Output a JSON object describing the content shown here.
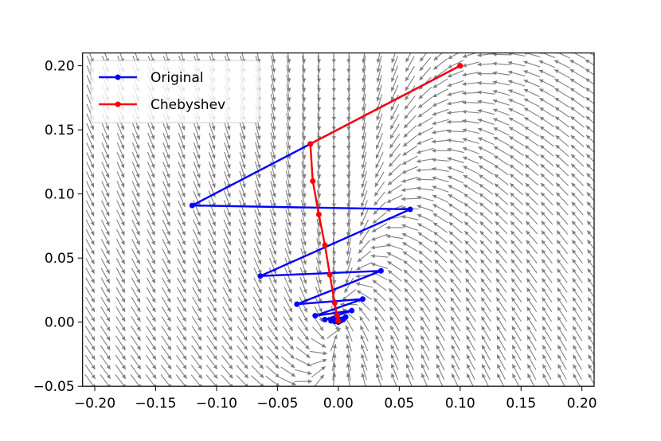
{
  "chart_data": {
    "type": "line",
    "title": "",
    "xlabel": "",
    "ylabel": "",
    "xlim": [
      -0.21,
      0.21
    ],
    "ylim": [
      -0.05,
      0.21
    ],
    "xticks": [
      "−0.20",
      "−0.15",
      "−0.10",
      "−0.05",
      "0.00",
      "0.05",
      "0.10",
      "0.15",
      "0.20"
    ],
    "xtick_values": [
      -0.2,
      -0.15,
      -0.1,
      -0.05,
      0.0,
      0.05,
      0.1,
      0.15,
      0.2
    ],
    "yticks": [
      "−0.05",
      "0.00",
      "0.05",
      "0.10",
      "0.15",
      "0.20"
    ],
    "ytick_values": [
      -0.05,
      0.0,
      0.05,
      0.1,
      0.15,
      0.2
    ],
    "grid": false,
    "legend_position": "upper-left",
    "background_field": {
      "type": "quiver",
      "color": "#808080"
    },
    "series": [
      {
        "name": "Original",
        "color": "#0000ff",
        "marker": "circle",
        "points": [
          [
            0.1,
            0.2
          ],
          [
            -0.023,
            0.139
          ],
          [
            -0.12,
            0.091
          ],
          [
            0.059,
            0.088
          ],
          [
            -0.064,
            0.036
          ],
          [
            0.035,
            0.04
          ],
          [
            -0.034,
            0.014
          ],
          [
            0.02,
            0.018
          ],
          [
            -0.019,
            0.005
          ],
          [
            0.011,
            0.009
          ],
          [
            -0.011,
            0.002
          ],
          [
            0.006,
            0.004
          ],
          [
            -0.006,
            0.001
          ],
          [
            0.004,
            0.002
          ],
          [
            -0.003,
            0.0005
          ],
          [
            0.002,
            0.001
          ],
          [
            0.0,
            0.0
          ]
        ]
      },
      {
        "name": "Chebyshev",
        "color": "#ff0000",
        "marker": "circle",
        "points": [
          [
            0.1,
            0.2
          ],
          [
            -0.023,
            0.139
          ],
          [
            -0.021,
            0.11
          ],
          [
            -0.016,
            0.084
          ],
          [
            -0.011,
            0.06
          ],
          [
            -0.007,
            0.037
          ],
          [
            -0.003,
            0.015
          ],
          [
            -0.001,
            0.005
          ],
          [
            0.0,
            0.001
          ]
        ]
      }
    ]
  }
}
